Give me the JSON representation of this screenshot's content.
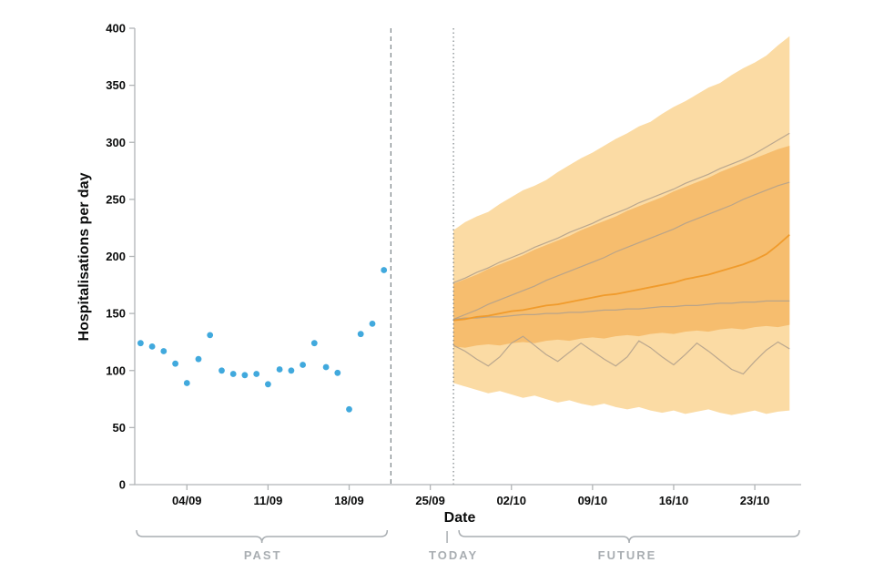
{
  "annotations": {
    "past": "PAST",
    "today": "TODAY",
    "future": "FUTURE"
  },
  "chart_data": {
    "type": "scatter+fan-projection",
    "title": "",
    "xlabel": "Date",
    "ylabel": "Hospitalisations per day",
    "ylim": [
      0,
      400
    ],
    "yticks": [
      0,
      50,
      100,
      150,
      200,
      250,
      300,
      350,
      400
    ],
    "xticks": [
      "04/09",
      "11/09",
      "18/09",
      "25/09",
      "02/10",
      "09/10",
      "16/10",
      "23/10"
    ],
    "past_end_line_date": "21/09",
    "today_line_date": "27/09",
    "observed": {
      "dates": [
        "31/08",
        "01/09",
        "02/09",
        "03/09",
        "04/09",
        "05/09",
        "06/09",
        "07/09",
        "08/09",
        "09/09",
        "10/09",
        "11/09",
        "12/09",
        "13/09",
        "14/09",
        "15/09",
        "16/09",
        "17/09",
        "18/09",
        "19/09",
        "20/09",
        "21/09"
      ],
      "values": [
        124,
        121,
        117,
        106,
        89,
        110,
        131,
        100,
        97,
        96,
        97,
        88,
        101,
        100,
        105,
        124,
        103,
        98,
        66,
        132,
        141,
        188
      ]
    },
    "projection": {
      "dates": [
        "27/09",
        "28/09",
        "29/09",
        "30/09",
        "01/10",
        "02/10",
        "03/10",
        "04/10",
        "05/10",
        "06/10",
        "07/10",
        "08/10",
        "09/10",
        "10/10",
        "11/10",
        "12/10",
        "13/10",
        "14/10",
        "15/10",
        "16/10",
        "17/10",
        "18/10",
        "19/10",
        "20/10",
        "21/10",
        "22/10",
        "23/10",
        "24/10",
        "25/10",
        "26/10"
      ],
      "bands": {
        "outer_upper": [
          223,
          230,
          235,
          239,
          246,
          252,
          258,
          262,
          267,
          274,
          280,
          286,
          291,
          297,
          303,
          308,
          314,
          318,
          325,
          331,
          336,
          342,
          348,
          352,
          359,
          365,
          370,
          376,
          385,
          393
        ],
        "outer_lower": [
          89,
          86,
          83,
          80,
          82,
          79,
          76,
          78,
          75,
          72,
          74,
          71,
          69,
          71,
          68,
          66,
          68,
          65,
          63,
          65,
          62,
          64,
          66,
          63,
          61,
          63,
          65,
          62,
          64,
          65
        ],
        "inner_upper": [
          176,
          180,
          184,
          189,
          193,
          197,
          201,
          206,
          210,
          214,
          218,
          223,
          227,
          231,
          235,
          240,
          244,
          248,
          252,
          257,
          261,
          265,
          269,
          274,
          278,
          282,
          286,
          290,
          294,
          297
        ],
        "inner_lower": [
          121,
          120,
          122,
          123,
          122,
          124,
          125,
          124,
          126,
          127,
          126,
          128,
          129,
          128,
          130,
          131,
          130,
          132,
          133,
          132,
          134,
          135,
          134,
          136,
          137,
          136,
          138,
          139,
          138,
          140
        ]
      },
      "median": [
        144,
        145,
        147,
        148,
        150,
        152,
        153,
        155,
        157,
        158,
        160,
        162,
        164,
        166,
        167,
        169,
        171,
        173,
        175,
        177,
        180,
        182,
        184,
        187,
        190,
        193,
        197,
        202,
        210,
        219
      ],
      "model_lines": [
        [
          177,
          181,
          186,
          190,
          195,
          199,
          203,
          208,
          212,
          216,
          221,
          225,
          229,
          234,
          238,
          242,
          247,
          251,
          255,
          259,
          264,
          268,
          272,
          277,
          281,
          285,
          290,
          296,
          302,
          308
        ],
        [
          145,
          149,
          153,
          158,
          162,
          166,
          170,
          174,
          179,
          183,
          187,
          191,
          195,
          199,
          204,
          208,
          212,
          216,
          220,
          224,
          229,
          233,
          237,
          241,
          245,
          250,
          254,
          258,
          262,
          265
        ],
        [
          145,
          146,
          146,
          147,
          147,
          148,
          149,
          149,
          150,
          150,
          151,
          151,
          152,
          153,
          153,
          154,
          154,
          155,
          156,
          156,
          157,
          157,
          158,
          159,
          159,
          160,
          160,
          161,
          161,
          161
        ],
        [
          122,
          117,
          110,
          104,
          112,
          124,
          130,
          122,
          114,
          108,
          116,
          124,
          117,
          110,
          104,
          112,
          126,
          120,
          112,
          105,
          114,
          124,
          117,
          109,
          101,
          97,
          108,
          118,
          125,
          119
        ]
      ]
    },
    "colors": {
      "observed": "#41a9dd",
      "band_outer": "#fbdba4",
      "band_inner": "#f6bd6e",
      "median": "#f09b2c",
      "model_line": "#b2a18c",
      "axis": "#b1b4b6",
      "boundary": "#6f777b",
      "annotation": "#a9aeb2"
    }
  }
}
